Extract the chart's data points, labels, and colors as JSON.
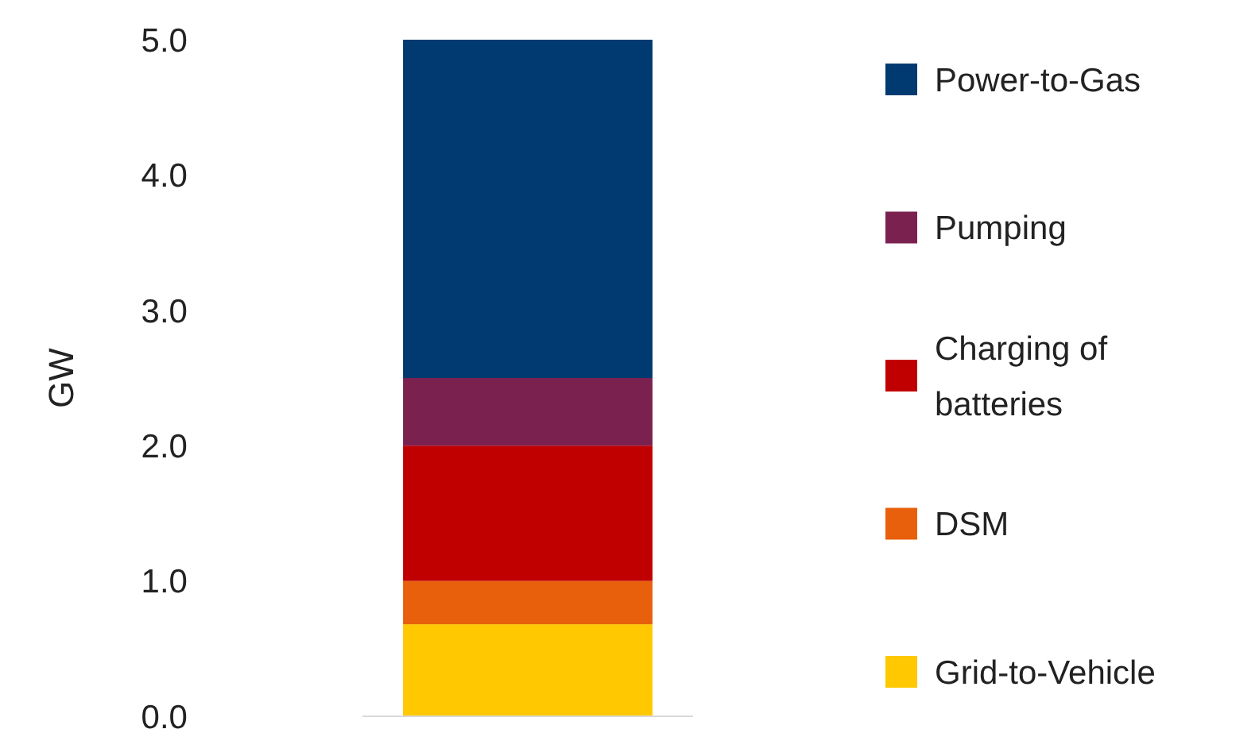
{
  "chart_data": {
    "type": "bar",
    "stacked": true,
    "categories": [
      null
    ],
    "ylabel": "GW",
    "ylim": [
      0,
      5
    ],
    "yticks": [
      {
        "value": 0,
        "label": "0.0"
      },
      {
        "value": 1,
        "label": "1.0"
      },
      {
        "value": 2,
        "label": "2.0"
      },
      {
        "value": 3,
        "label": "3.0"
      },
      {
        "value": 4,
        "label": "4.0"
      },
      {
        "value": 5,
        "label": "5.0"
      }
    ],
    "legend": "right",
    "grid": false,
    "series": [
      {
        "name": "Grid-to-Vehicle",
        "color": "#ffc800",
        "values": [
          0.68
        ]
      },
      {
        "name": "DSM",
        "color": "#e8600c",
        "values": [
          0.32
        ]
      },
      {
        "name": "Charging of batteries",
        "color": "#c00000",
        "values": [
          1.0
        ]
      },
      {
        "name": "Pumping",
        "color": "#7b2150",
        "values": [
          0.5
        ]
      },
      {
        "name": "Power-to-Gas",
        "color": "#003a70",
        "values": [
          2.5
        ]
      }
    ]
  }
}
